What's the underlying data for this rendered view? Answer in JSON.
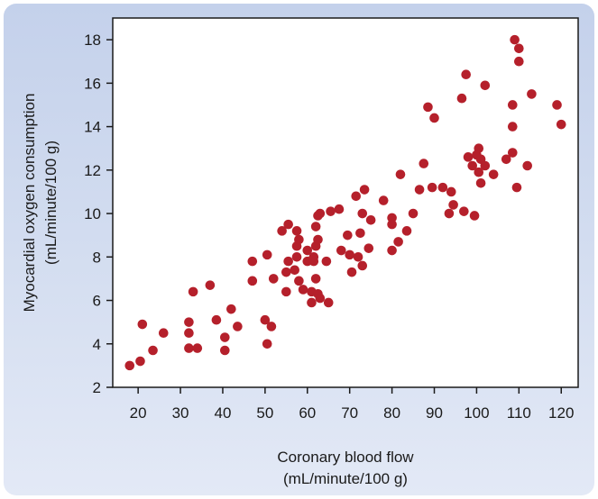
{
  "chart_data": {
    "type": "scatter",
    "xlabel": "Coronary blood flow",
    "xlabel_unit": "(mL/minute/100 g)",
    "ylabel": "Myocardial oxygen consumption",
    "ylabel_unit": "(mL/minute/100 g)",
    "xlim": [
      14,
      124
    ],
    "ylim": [
      2,
      19
    ],
    "xticks": [
      20,
      30,
      40,
      50,
      60,
      70,
      80,
      90,
      100,
      110,
      120
    ],
    "yticks": [
      2,
      4,
      6,
      8,
      10,
      12,
      14,
      16,
      18
    ],
    "grid": false,
    "marker_color": "#b5202b",
    "points": [
      [
        18,
        3.0
      ],
      [
        20.5,
        3.2
      ],
      [
        21,
        4.9
      ],
      [
        23.5,
        3.7
      ],
      [
        26,
        4.5
      ],
      [
        32,
        3.8
      ],
      [
        32,
        4.5
      ],
      [
        32,
        5.0
      ],
      [
        33,
        6.4
      ],
      [
        34,
        3.8
      ],
      [
        37,
        6.7
      ],
      [
        38.5,
        5.1
      ],
      [
        40.5,
        4.3
      ],
      [
        40.5,
        3.7
      ],
      [
        42,
        5.6
      ],
      [
        43.5,
        4.8
      ],
      [
        47,
        7.8
      ],
      [
        47,
        6.9
      ],
      [
        50,
        5.1
      ],
      [
        50.5,
        8.1
      ],
      [
        50.5,
        4.0
      ],
      [
        51.5,
        4.8
      ],
      [
        52,
        7.0
      ],
      [
        54,
        9.2
      ],
      [
        55,
        7.3
      ],
      [
        55,
        6.4
      ],
      [
        55.5,
        7.8
      ],
      [
        55.5,
        9.5
      ],
      [
        57,
        7.4
      ],
      [
        57.5,
        8.5
      ],
      [
        57.5,
        8.0
      ],
      [
        57.5,
        9.2
      ],
      [
        58,
        8.8
      ],
      [
        58,
        6.9
      ],
      [
        59,
        6.5
      ],
      [
        60,
        7.8
      ],
      [
        60,
        8.3
      ],
      [
        61,
        6.4
      ],
      [
        61,
        5.9
      ],
      [
        61.5,
        7.8
      ],
      [
        61.5,
        8.0
      ],
      [
        62,
        8.5
      ],
      [
        62,
        7.0
      ],
      [
        62,
        9.4
      ],
      [
        62.5,
        6.3
      ],
      [
        62.5,
        8.8
      ],
      [
        62.5,
        9.9
      ],
      [
        63,
        6.1
      ],
      [
        63,
        10.0
      ],
      [
        64.5,
        7.8
      ],
      [
        65,
        5.9
      ],
      [
        65.5,
        10.1
      ],
      [
        67.5,
        10.2
      ],
      [
        68,
        8.3
      ],
      [
        69.5,
        9.0
      ],
      [
        70,
        8.1
      ],
      [
        70.5,
        7.3
      ],
      [
        71.5,
        10.8
      ],
      [
        72,
        8.0
      ],
      [
        72.5,
        9.1
      ],
      [
        73,
        10.0
      ],
      [
        73,
        7.6
      ],
      [
        73.5,
        11.1
      ],
      [
        74.5,
        8.4
      ],
      [
        75,
        9.7
      ],
      [
        78,
        10.6
      ],
      [
        80,
        9.8
      ],
      [
        80,
        9.5
      ],
      [
        80,
        8.3
      ],
      [
        81.5,
        8.7
      ],
      [
        82,
        11.8
      ],
      [
        83.5,
        9.2
      ],
      [
        85,
        10.0
      ],
      [
        86.5,
        11.1
      ],
      [
        87.5,
        12.3
      ],
      [
        88.5,
        14.9
      ],
      [
        89.5,
        11.2
      ],
      [
        90,
        14.4
      ],
      [
        92,
        11.2
      ],
      [
        93.5,
        10.0
      ],
      [
        94,
        11.0
      ],
      [
        94.5,
        10.4
      ],
      [
        96.5,
        15.3
      ],
      [
        97,
        10.1
      ],
      [
        97.5,
        16.4
      ],
      [
        98,
        12.6
      ],
      [
        99,
        12.2
      ],
      [
        99.5,
        9.9
      ],
      [
        100,
        12.7
      ],
      [
        100.5,
        13.0
      ],
      [
        100.5,
        11.9
      ],
      [
        101,
        12.5
      ],
      [
        101,
        11.4
      ],
      [
        102,
        15.9
      ],
      [
        102,
        12.2
      ],
      [
        104,
        11.8
      ],
      [
        107,
        12.5
      ],
      [
        108.5,
        14.0
      ],
      [
        108.5,
        12.8
      ],
      [
        108.5,
        15.0
      ],
      [
        109,
        18.0
      ],
      [
        109.5,
        11.2
      ],
      [
        110,
        17.0
      ],
      [
        110,
        17.6
      ],
      [
        112,
        12.2
      ],
      [
        113,
        15.5
      ],
      [
        119,
        15.0
      ],
      [
        120,
        14.1
      ]
    ]
  }
}
